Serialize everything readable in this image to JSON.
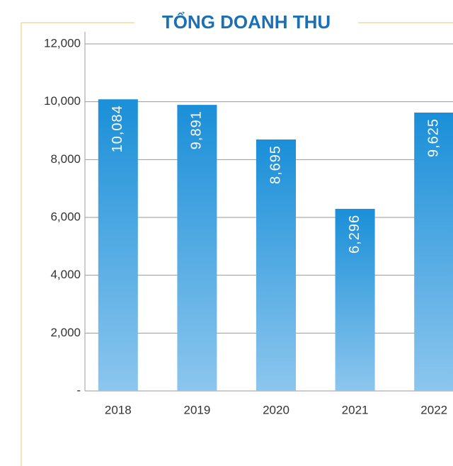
{
  "chart_data": {
    "type": "bar",
    "title": "TỔNG DOANH THU",
    "categories": [
      "2018",
      "2019",
      "2020",
      "2021",
      "2022"
    ],
    "values": [
      10084,
      9891,
      8695,
      6296,
      9625
    ],
    "value_labels": [
      "10,084",
      "9,891",
      "8,695",
      "6,296",
      "9,625"
    ],
    "color": "#1a8fd8",
    "ylim": [
      0,
      12000
    ],
    "yticks": [
      {
        "value": 0,
        "label": "-"
      },
      {
        "value": 2000,
        "label": "2,000"
      },
      {
        "value": 4000,
        "label": "4,000"
      },
      {
        "value": 6000,
        "label": "6,000"
      },
      {
        "value": 8000,
        "label": "8,000"
      },
      {
        "value": 10000,
        "label": "10,000"
      },
      {
        "value": 12000,
        "label": "12,000"
      }
    ],
    "grid": true
  }
}
